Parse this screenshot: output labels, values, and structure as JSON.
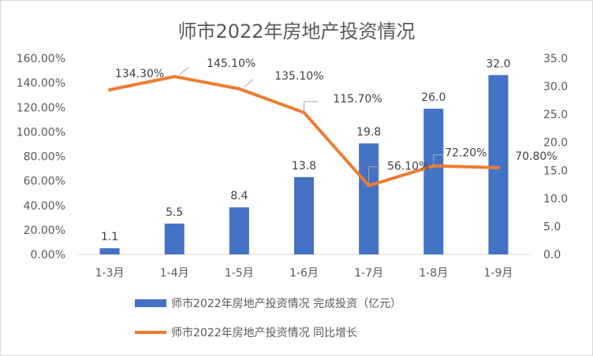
{
  "chart_data": {
    "type": "bar+line",
    "title": "师市2022年房地产投资情况",
    "categories": [
      "1-3月",
      "1-4月",
      "1-5月",
      "1-6月",
      "1-7月",
      "1-8月",
      "1-9月"
    ],
    "series": [
      {
        "name": "师市2022年房地产投资情况 完成投资（亿元）",
        "type": "bar",
        "axis": "right",
        "color": "#4472c4",
        "values": [
          1.1,
          5.5,
          8.4,
          13.8,
          19.8,
          26.0,
          32.0
        ],
        "labels": [
          "1.1",
          "5.5",
          "8.4",
          "13.8",
          "19.8",
          "26.0",
          "32.0"
        ]
      },
      {
        "name": "师市2022年房地产投资情况 同比增长",
        "type": "line",
        "axis": "left",
        "color": "#ed7d31",
        "values": [
          134.3,
          145.1,
          135.1,
          115.7,
          56.1,
          72.2,
          70.8
        ],
        "labels": [
          "134.30%",
          "145.10%",
          "135.10%",
          "115.70%",
          "56.10%",
          "72.20%",
          "70.80%"
        ]
      }
    ],
    "left_axis": {
      "min": 0,
      "max": 160,
      "step": 20,
      "ticks": [
        "0.00%",
        "20.00%",
        "40.00%",
        "60.00%",
        "80.00%",
        "100.00%",
        "120.00%",
        "140.00%",
        "160.00%"
      ]
    },
    "right_axis": {
      "min": 0,
      "max": 35,
      "step": 5,
      "ticks": [
        "0.0",
        "5.0",
        "10.0",
        "15.0",
        "20.0",
        "25.0",
        "30.0",
        "35.0"
      ]
    },
    "grid": false,
    "legend_position": "bottom"
  }
}
